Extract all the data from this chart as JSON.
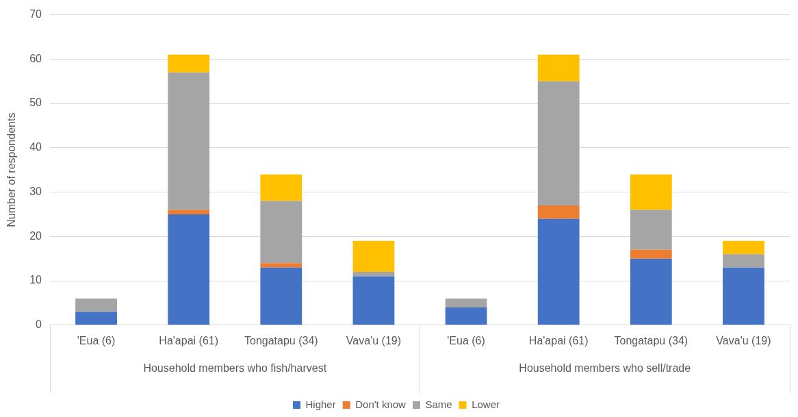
{
  "chart_data": {
    "type": "bar",
    "stacked": true,
    "ylabel": "Number of respondents",
    "categories": [
      "'Eua (6)",
      "Ha'apai (61)",
      "Tongatapu (34)",
      "Vava'u (19)",
      "'Eua (6)",
      "Ha'apai (61)",
      "Tongatapu (34)",
      "Vava'u (19)"
    ],
    "series": [
      {
        "name": "Higher",
        "color": "#4472c4",
        "values": [
          3,
          25,
          13,
          11,
          4,
          24,
          15,
          13
        ]
      },
      {
        "name": "Don't know",
        "color": "#ed7d31",
        "values": [
          0,
          1,
          1,
          0,
          0,
          3,
          2,
          0
        ]
      },
      {
        "name": "Same",
        "color": "#a5a5a5",
        "values": [
          3,
          31,
          14,
          1,
          2,
          28,
          9,
          3
        ]
      },
      {
        "name": "Lower",
        "color": "#ffc000",
        "values": [
          0,
          4,
          6,
          7,
          0,
          6,
          8,
          3
        ]
      }
    ],
    "ylim": [
      0,
      70
    ],
    "yticks": [
      0,
      10,
      20,
      30,
      40,
      50,
      60,
      70
    ],
    "grid": "y",
    "legend": "bottom",
    "annotations": [
      "Household members who fish/harvest",
      "Household members who sell/trade"
    ]
  }
}
